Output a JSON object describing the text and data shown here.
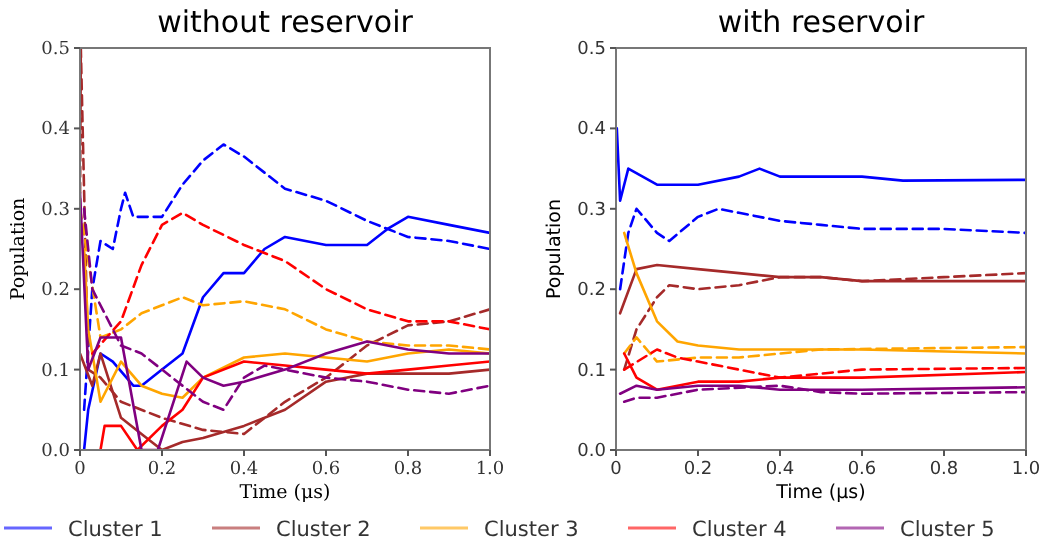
{
  "chart_data": [
    {
      "type": "line",
      "title": "without reservoir",
      "xlabel": "Time (μs)",
      "ylabel": "Population",
      "xlim": [
        0,
        1
      ],
      "ylim": [
        0,
        0.5
      ],
      "xticks": [
        0,
        0.2,
        0.4,
        0.6,
        0.8,
        {
          "value": 1,
          "label": "1.0"
        }
      ],
      "yticks": [
        {
          "value": 0,
          "label": "0.0"
        },
        0.1,
        0.2,
        0.3,
        0.4,
        0.5
      ],
      "grid": false,
      "legend": "bottom",
      "marker": "none",
      "series": [
        {
          "name": "Cluster 1",
          "color": "#0000ff",
          "line_style": "solid",
          "x": [
            0.01,
            0.02,
            0.05,
            0.08,
            0.13,
            0.15,
            0.2,
            0.25,
            0.3,
            0.35,
            0.4,
            0.45,
            0.5,
            0.6,
            0.7,
            0.75,
            0.8,
            0.9,
            1
          ],
          "values": [
            0,
            0.05,
            0.12,
            0.11,
            0.08,
            0.08,
            0.1,
            0.12,
            0.19,
            0.22,
            0.22,
            0.25,
            0.265,
            0.255,
            0.255,
            0.275,
            0.29,
            0.28,
            0.27
          ]
        },
        {
          "color": "#0000ff",
          "line_style": "dashed",
          "x": [
            0.01,
            0.03,
            0.05,
            0.08,
            0.1,
            0.11,
            0.13,
            0.2,
            0.25,
            0.3,
            0.35,
            0.4,
            0.5,
            0.6,
            0.7,
            0.8,
            0.9,
            1
          ],
          "values": [
            0.05,
            0.2,
            0.26,
            0.25,
            0.3,
            0.32,
            0.29,
            0.29,
            0.33,
            0.36,
            0.38,
            0.365,
            0.325,
            0.31,
            0.285,
            0.265,
            0.26,
            0.25
          ]
        },
        {
          "name": "Cluster 2",
          "color": "#a52a2a",
          "line_style": "solid",
          "x": [
            0,
            0.03,
            0.05,
            0.1,
            0.15,
            0.2,
            0.25,
            0.3,
            0.4,
            0.5,
            0.6,
            0.7,
            0.8,
            0.9,
            1
          ],
          "values": [
            0.12,
            0.08,
            0.12,
            0.04,
            0.02,
            0,
            0.01,
            0.015,
            0.03,
            0.05,
            0.085,
            0.095,
            0.095,
            0.095,
            0.1
          ]
        },
        {
          "color": "#a52a2a",
          "line_style": "dashed",
          "x": [
            0,
            0.002,
            0.02,
            0.05,
            0.1,
            0.2,
            0.3,
            0.4,
            0.5,
            0.6,
            0.7,
            0.8,
            0.9,
            1
          ],
          "values": [
            0.3,
            0.5,
            0.1,
            0.09,
            0.06,
            0.04,
            0.025,
            0.02,
            0.06,
            0.09,
            0.13,
            0.155,
            0.16,
            0.175
          ]
        },
        {
          "name": "Cluster 3",
          "color": "#ffa500",
          "line_style": "solid",
          "x": [
            0.01,
            0.02,
            0.05,
            0.1,
            0.15,
            0.2,
            0.25,
            0.3,
            0.4,
            0.5,
            0.6,
            0.7,
            0.8,
            0.9,
            1
          ],
          "values": [
            0.25,
            0.15,
            0.06,
            0.11,
            0.08,
            0.07,
            0.065,
            0.09,
            0.115,
            0.12,
            0.115,
            0.11,
            0.12,
            0.125,
            0.12
          ]
        },
        {
          "color": "#ffa500",
          "line_style": "dashed",
          "x": [
            0,
            0.05,
            0.1,
            0.15,
            0.2,
            0.25,
            0.3,
            0.4,
            0.5,
            0.6,
            0.7,
            0.8,
            0.9,
            1
          ],
          "values": [
            0.3,
            0.14,
            0.15,
            0.17,
            0.18,
            0.19,
            0.18,
            0.185,
            0.175,
            0.15,
            0.135,
            0.13,
            0.13,
            0.125
          ]
        },
        {
          "name": "Cluster 4",
          "color": "#ff0000",
          "line_style": "solid",
          "x": [
            0.05,
            0.06,
            0.1,
            0.14,
            0.2,
            0.25,
            0.3,
            0.4,
            0.5,
            0.6,
            0.7,
            0.8,
            0.9,
            1
          ],
          "values": [
            0,
            0.03,
            0.03,
            0,
            0.03,
            0.05,
            0.09,
            0.11,
            0.105,
            0.1,
            0.095,
            0.1,
            0.105,
            0.11
          ]
        },
        {
          "color": "#ff0000",
          "line_style": "dashed",
          "x": [
            0.03,
            0.1,
            0.15,
            0.2,
            0.25,
            0.3,
            0.4,
            0.5,
            0.6,
            0.7,
            0.8,
            0.9,
            1
          ],
          "values": [
            0.12,
            0.16,
            0.23,
            0.28,
            0.295,
            0.28,
            0.255,
            0.235,
            0.2,
            0.175,
            0.16,
            0.16,
            0.15
          ]
        },
        {
          "name": "Cluster 5",
          "color": "#800080",
          "line_style": "solid",
          "x": [
            0,
            0.02,
            0.05,
            0.1,
            0.15,
            0.19,
            0.26,
            0.3,
            0.35,
            0.4,
            0.5,
            0.6,
            0.7,
            0.8,
            0.9,
            1
          ],
          "values": [
            0.32,
            0.1,
            0.14,
            0.14,
            0,
            0,
            0.11,
            0.09,
            0.08,
            0.085,
            0.1,
            0.12,
            0.135,
            0.125,
            0.12,
            0.12
          ]
        },
        {
          "color": "#800080",
          "line_style": "dashed",
          "x": [
            0.01,
            0.03,
            0.1,
            0.15,
            0.2,
            0.25,
            0.3,
            0.35,
            0.4,
            0.45,
            0.5,
            0.6,
            0.7,
            0.8,
            0.9,
            1
          ],
          "values": [
            0.3,
            0.2,
            0.13,
            0.12,
            0.1,
            0.08,
            0.06,
            0.05,
            0.09,
            0.105,
            0.1,
            0.09,
            0.085,
            0.075,
            0.07,
            0.08
          ]
        }
      ]
    },
    {
      "type": "line",
      "title": "with reservoir",
      "xlabel": "Time (μs)",
      "ylabel": "Population",
      "xlim": [
        0,
        1
      ],
      "ylim": [
        0,
        0.5
      ],
      "xticks": [
        0,
        0.2,
        0.4,
        0.6,
        0.8,
        {
          "value": 1,
          "label": "1.0"
        }
      ],
      "yticks": [
        {
          "value": 0,
          "label": "0.0"
        },
        0.1,
        0.2,
        0.3,
        0.4,
        0.5
      ],
      "grid": false,
      "marker": "none",
      "series": [
        {
          "color": "#0000ff",
          "line_style": "solid",
          "x": [
            0.002,
            0.01,
            0.03,
            0.1,
            0.2,
            0.3,
            0.35,
            0.4,
            0.6,
            0.7,
            1
          ],
          "values": [
            0.4,
            0.31,
            0.35,
            0.33,
            0.33,
            0.34,
            0.35,
            0.34,
            0.34,
            0.335,
            0.336
          ]
        },
        {
          "color": "#0000ff",
          "line_style": "dashed",
          "x": [
            0.01,
            0.03,
            0.05,
            0.1,
            0.13,
            0.2,
            0.25,
            0.3,
            0.4,
            0.5,
            0.6,
            0.8,
            1
          ],
          "values": [
            0.2,
            0.27,
            0.3,
            0.27,
            0.26,
            0.29,
            0.3,
            0.295,
            0.285,
            0.28,
            0.275,
            0.275,
            0.27
          ]
        },
        {
          "color": "#a52a2a",
          "line_style": "solid",
          "x": [
            0.01,
            0.05,
            0.1,
            0.2,
            0.3,
            0.4,
            0.5,
            0.6,
            0.8,
            1
          ],
          "values": [
            0.17,
            0.225,
            0.23,
            0.225,
            0.22,
            0.215,
            0.215,
            0.21,
            0.21,
            0.21
          ]
        },
        {
          "color": "#a52a2a",
          "line_style": "dashed",
          "x": [
            0.02,
            0.05,
            0.1,
            0.13,
            0.2,
            0.3,
            0.4,
            0.5,
            0.6,
            0.8,
            1
          ],
          "values": [
            0.1,
            0.15,
            0.19,
            0.205,
            0.2,
            0.205,
            0.215,
            0.215,
            0.21,
            0.215,
            0.22
          ]
        },
        {
          "color": "#ffa500",
          "line_style": "solid",
          "x": [
            0.02,
            0.05,
            0.1,
            0.15,
            0.2,
            0.3,
            0.4,
            0.6,
            1
          ],
          "values": [
            0.27,
            0.22,
            0.16,
            0.135,
            0.13,
            0.125,
            0.125,
            0.125,
            0.12
          ]
        },
        {
          "color": "#ffa500",
          "line_style": "dashed",
          "x": [
            0.02,
            0.05,
            0.1,
            0.2,
            0.3,
            0.4,
            0.5,
            1
          ],
          "values": [
            0.12,
            0.14,
            0.11,
            0.115,
            0.115,
            0.12,
            0.125,
            0.128
          ]
        },
        {
          "color": "#ff0000",
          "line_style": "solid",
          "x": [
            0.02,
            0.05,
            0.1,
            0.2,
            0.3,
            0.4,
            0.6,
            1
          ],
          "values": [
            0.12,
            0.09,
            0.075,
            0.085,
            0.085,
            0.09,
            0.09,
            0.097
          ]
        },
        {
          "color": "#ff0000",
          "line_style": "dashed",
          "x": [
            0.02,
            0.1,
            0.15,
            0.2,
            0.3,
            0.4,
            0.5,
            0.6,
            1
          ],
          "values": [
            0.1,
            0.125,
            0.115,
            0.11,
            0.1,
            0.09,
            0.095,
            0.1,
            0.102
          ]
        },
        {
          "color": "#800080",
          "line_style": "solid",
          "x": [
            0.01,
            0.05,
            0.1,
            0.2,
            0.3,
            0.4,
            0.6,
            1
          ],
          "values": [
            0.07,
            0.08,
            0.075,
            0.08,
            0.08,
            0.075,
            0.075,
            0.078
          ]
        },
        {
          "color": "#800080",
          "line_style": "dashed",
          "x": [
            0.02,
            0.05,
            0.1,
            0.2,
            0.4,
            0.5,
            0.6,
            1
          ],
          "values": [
            0.06,
            0.065,
            0.065,
            0.075,
            0.08,
            0.072,
            0.07,
            0.072
          ]
        }
      ]
    }
  ]
}
